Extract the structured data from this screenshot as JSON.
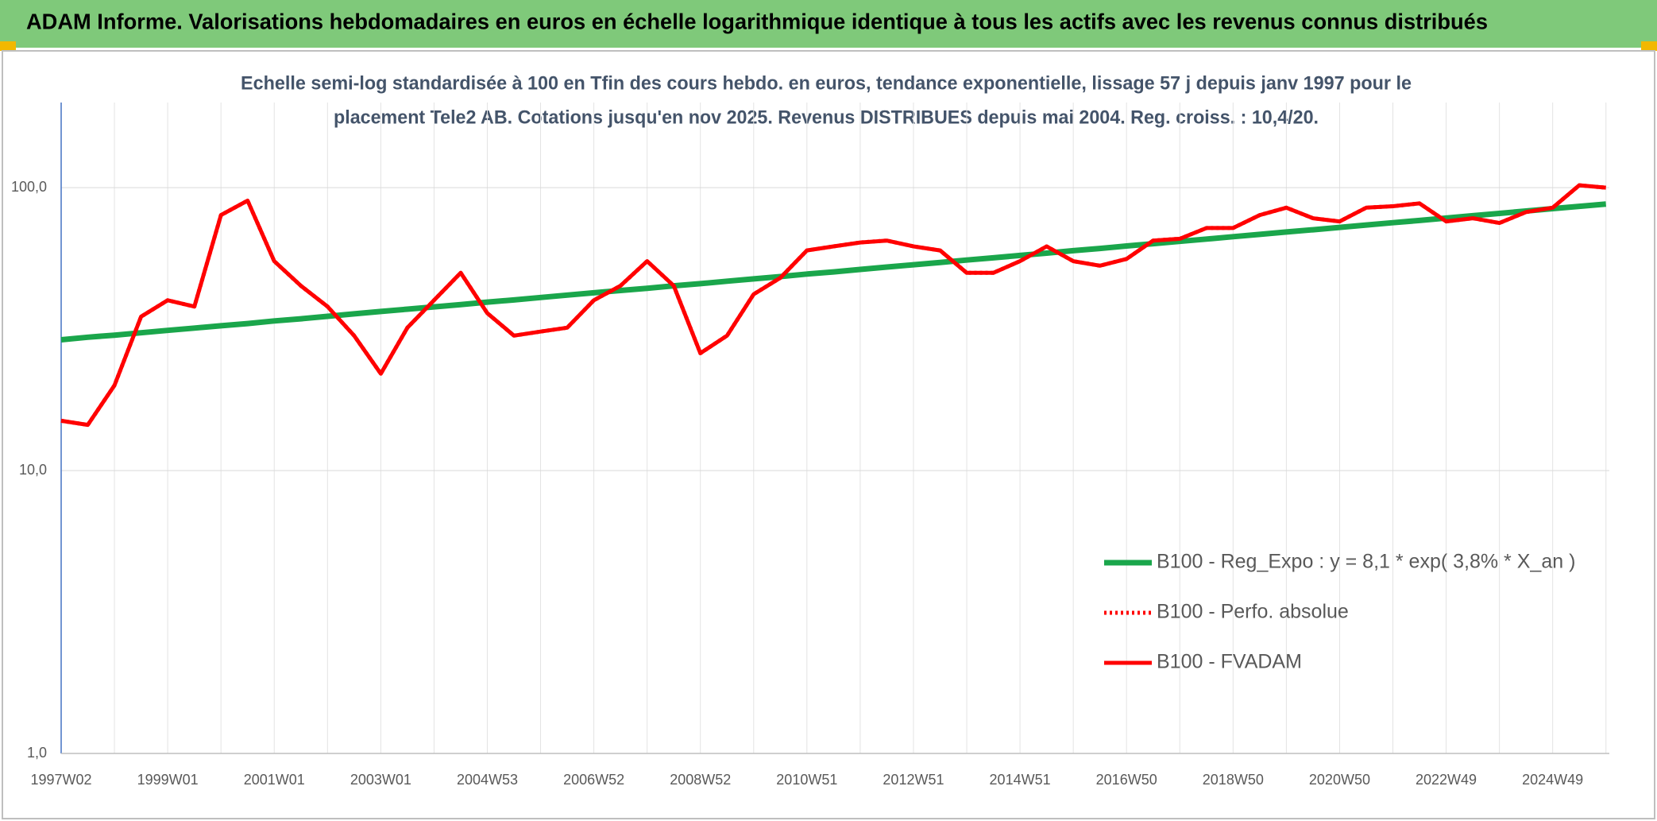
{
  "chart_data": {
    "type": "line",
    "title": "ADAM Informe. Valorisations hebdomadaires en euros en échelle logarithmique identique à tous les actifs avec les revenus connus distribués",
    "subtitle": [
      "Echelle semi-log standardisée à 100 en Tfin des cours hebdo. en euros, tendance exponentielle, lissage 57 j depuis janv 1997 pour le",
      "placement Tele2 AB. Cotations jusqu'en nov 2025. Revenus DISTRIBUES depuis mai 2004. Reg. croiss. : 10,4/20."
    ],
    "categories": [
      "1997W02",
      null,
      null,
      null,
      "1999W01",
      null,
      null,
      null,
      "2001W01",
      null,
      null,
      null,
      "2003W01",
      null,
      null,
      null,
      "2004W53",
      null,
      null,
      null,
      "2006W52",
      null,
      null,
      null,
      "2008W52",
      null,
      null,
      null,
      "2010W51",
      null,
      null,
      null,
      "2012W51",
      null,
      null,
      null,
      "2014W51",
      null,
      null,
      null,
      "2016W50",
      null,
      null,
      null,
      "2018W50",
      null,
      null,
      null,
      "2020W50",
      null,
      null,
      null,
      "2022W49",
      null,
      null,
      null,
      "2024W49",
      null,
      null
    ],
    "series": [
      {
        "name": "B100 - Reg_Expo : y = 8,1 * exp( 3,8% *  X_an )",
        "color": "#1aa64b",
        "dash": "solid",
        "values": [
          29.0,
          29.6,
          30.1,
          30.7,
          31.3,
          31.9,
          32.5,
          33.1,
          33.8,
          34.4,
          35.1,
          35.8,
          36.5,
          37.2,
          37.9,
          38.6,
          39.4,
          40.1,
          40.9,
          41.7,
          42.5,
          43.3,
          44.1,
          45.0,
          45.8,
          46.7,
          47.6,
          48.5,
          49.5,
          50.4,
          51.4,
          52.4,
          53.4,
          54.4,
          55.5,
          56.5,
          57.6,
          58.7,
          59.9,
          61.0,
          62.2,
          63.4,
          64.6,
          65.8,
          67.1,
          68.4,
          69.7,
          71.0,
          72.4,
          73.8,
          75.2,
          76.6,
          78.1,
          79.6,
          81.1,
          82.7,
          84.3,
          85.9,
          87.5
        ]
      },
      {
        "name": "B100 - Perfo. absolue",
        "color": "#ff0000",
        "dash": "dotted",
        "values": [
          15,
          14.5,
          20,
          35,
          40,
          38,
          80,
          90,
          55,
          45,
          38,
          30,
          22,
          32,
          40,
          50,
          36,
          30,
          31,
          32,
          40,
          45,
          55,
          45,
          26,
          30,
          42,
          48,
          60,
          62,
          64,
          65,
          62,
          60,
          50,
          50,
          55,
          62,
          55,
          53,
          56,
          65,
          66,
          72,
          72,
          80,
          85,
          78,
          76,
          85,
          86,
          88,
          76,
          78,
          75,
          82,
          85,
          102,
          100
        ]
      },
      {
        "name": "B100 - FVADAM",
        "color": "#ff0000",
        "dash": "solid",
        "values": [
          15,
          14.5,
          20,
          35,
          40,
          38,
          80,
          90,
          55,
          45,
          38,
          30,
          22,
          32,
          40,
          50,
          36,
          30,
          31,
          32,
          40,
          45,
          55,
          45,
          26,
          30,
          42,
          48,
          60,
          62,
          64,
          65,
          62,
          60,
          50,
          50,
          55,
          62,
          55,
          53,
          56,
          65,
          66,
          72,
          72,
          80,
          85,
          78,
          76,
          85,
          86,
          88,
          76,
          78,
          75,
          82,
          85,
          102,
          100
        ]
      }
    ],
    "ylim": [
      1,
      200
    ],
    "yticks": [
      {
        "value": 1,
        "label": "1,0"
      },
      {
        "value": 10,
        "label": "10,0"
      },
      {
        "value": 100,
        "label": "100,0"
      }
    ],
    "log_scale": true,
    "grid": true,
    "legend": "right"
  }
}
